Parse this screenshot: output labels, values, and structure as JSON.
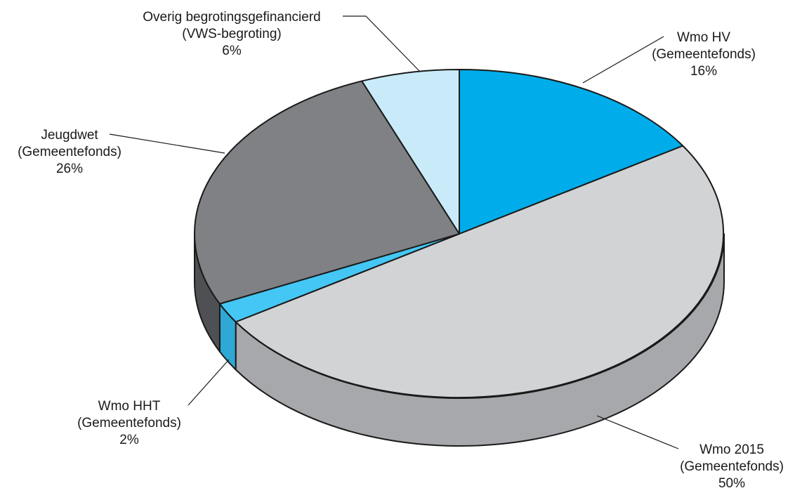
{
  "chart_data": {
    "type": "pie",
    "title": "",
    "style": "3d-tilted",
    "slices": [
      {
        "label_lines": [
          "Wmo HV",
          "(Gemeentefonds)"
        ],
        "value_label": "16%",
        "value": 16,
        "color": "#00ace9",
        "side_color": "#0090c4"
      },
      {
        "label_lines": [
          "Wmo 2015",
          "(Gemeentefonds)"
        ],
        "value_label": "50%",
        "value": 50,
        "color": "#d2d3d5",
        "side_color": "#a7a8ab"
      },
      {
        "label_lines": [
          "Wmo HHT",
          "(Gemeentefonds)"
        ],
        "value_label": "2%",
        "value": 2,
        "color": "#44c7f4",
        "side_color": "#2fa8d5"
      },
      {
        "label_lines": [
          "Jeugdwet",
          "(Gemeentefonds)"
        ],
        "value_label": "26%",
        "value": 26,
        "color": "#7f8184",
        "side_color": "#4f5053"
      },
      {
        "label_lines": [
          "Overig begrotingsgefinancierd",
          "(VWS-begroting)"
        ],
        "value_label": "6%",
        "value": 6,
        "color": "#c9eaf9",
        "side_color": "#9fd0e8"
      }
    ]
  }
}
